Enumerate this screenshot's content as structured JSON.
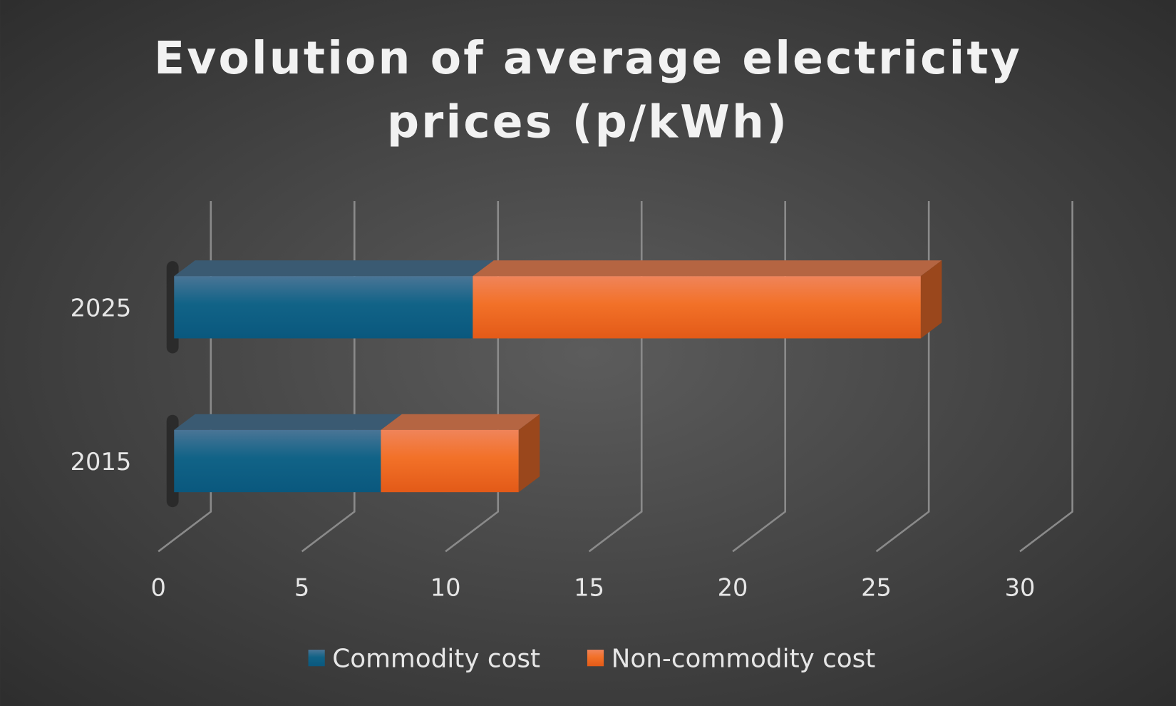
{
  "chart_data": {
    "type": "bar",
    "orientation": "horizontal",
    "stacked": true,
    "three_d": true,
    "title": "Evolution of average electricity prices (p/kWh)",
    "title_lines": [
      "Evolution of average electricity",
      "prices (p/kWh)"
    ],
    "categories": [
      "2015",
      "2025"
    ],
    "series": [
      {
        "name": "Commodity cost",
        "values": [
          7.2,
          10.4
        ],
        "color": "#0f5f86"
      },
      {
        "name": "Non-commodity cost",
        "values": [
          4.8,
          15.6
        ],
        "color": "#f06a26"
      }
    ],
    "xlim": [
      0,
      30
    ],
    "x_ticks": [
      "0",
      "5",
      "10",
      "15",
      "20",
      "25",
      "30"
    ],
    "grid": true,
    "legend_position": "bottom",
    "background": "#4a4a4a"
  }
}
